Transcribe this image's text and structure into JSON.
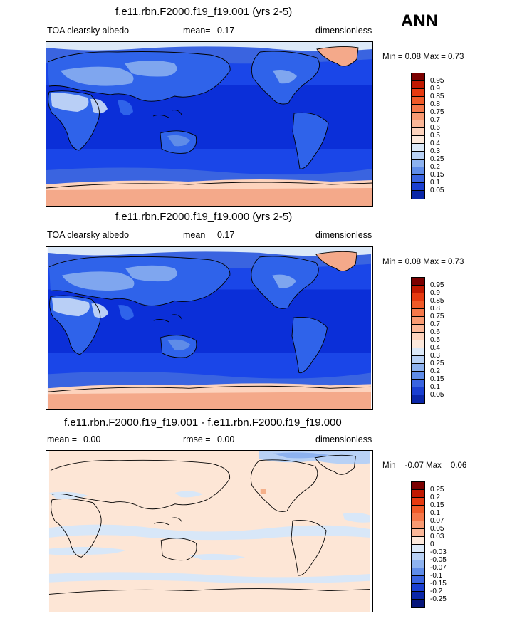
{
  "season_label": "ANN",
  "panels": [
    {
      "title": "f.e11.rbn.F2000.f19_f19.001 (yrs 2-5)",
      "variable": "TOA clearsky albedo",
      "stat1_label": "mean=",
      "stat1_value": "0.17",
      "units": "dimensionless",
      "range_text": "Min =  0.08 Max =   0.73",
      "colorbar_levels": [
        "0.95",
        "0.9",
        "0.85",
        "0.8",
        "0.75",
        "0.7",
        "0.6",
        "0.5",
        "0.4",
        "0.3",
        "0.25",
        "0.2",
        "0.15",
        "0.1",
        "0.05"
      ],
      "colorbar_colors": [
        "#7b0000",
        "#c01800",
        "#e63a10",
        "#f05a28",
        "#f5784a",
        "#f89a72",
        "#fbb798",
        "#fdd3bd",
        "#fde9dc",
        "#dce9f8",
        "#b8d1f5",
        "#8db2ef",
        "#5f8ce8",
        "#3a64e0",
        "#1a3fd0",
        "#0a26a8"
      ]
    },
    {
      "title": "f.e11.rbn.F2000.f19_f19.000 (yrs 2-5)",
      "variable": "TOA clearsky albedo",
      "stat1_label": "mean=",
      "stat1_value": "0.17",
      "units": "dimensionless",
      "range_text": "Min =  0.08 Max =  0.73",
      "colorbar_levels": [
        "0.95",
        "0.9",
        "0.85",
        "0.8",
        "0.75",
        "0.7",
        "0.6",
        "0.5",
        "0.4",
        "0.3",
        "0.25",
        "0.2",
        "0.15",
        "0.1",
        "0.05"
      ],
      "colorbar_colors": [
        "#7b0000",
        "#c01800",
        "#e63a10",
        "#f05a28",
        "#f5784a",
        "#f89a72",
        "#fbb798",
        "#fdd3bd",
        "#fde9dc",
        "#dce9f8",
        "#b8d1f5",
        "#8db2ef",
        "#5f8ce8",
        "#3a64e0",
        "#1a3fd0",
        "#0a26a8"
      ]
    },
    {
      "title": "f.e11.rbn.F2000.f19_f19.001 - f.e11.rbn.F2000.f19_f19.000",
      "stat1_label": "mean =",
      "stat1_value": "0.00",
      "stat2_label": "rmse =",
      "stat2_value": "0.00",
      "units": "dimensionless",
      "range_text": "Min =  -0.07 Max =   0.06",
      "colorbar_levels": [
        "0.25",
        "0.2",
        "0.15",
        "0.1",
        "0.07",
        "0.05",
        "0.03",
        "0",
        "-0.03",
        "-0.05",
        "-0.07",
        "-0.1",
        "-0.15",
        "-0.2",
        "-0.25"
      ],
      "colorbar_colors": [
        "#7b0000",
        "#c01800",
        "#e63a10",
        "#f05a28",
        "#f5784a",
        "#f89a72",
        "#fbb798",
        "#fde9dc",
        "#dce9f8",
        "#b8d1f5",
        "#8db2ef",
        "#5f8ce8",
        "#3a64e0",
        "#1a3fd0",
        "#0a26a8",
        "#06157a"
      ]
    }
  ],
  "colors": {
    "ocean_deep": "#0b2fd8",
    "ocean_mid": "#1a46e8",
    "land_mid": "#2f63ea",
    "land_bright": "#7fa6ef",
    "desert": "#b9cff6",
    "ice": "#f4a98a",
    "ice_light": "#fdd3bd",
    "diff_bg": "#fde6d6",
    "diff_neg": "#d8e7f8",
    "coast": "#000000"
  }
}
